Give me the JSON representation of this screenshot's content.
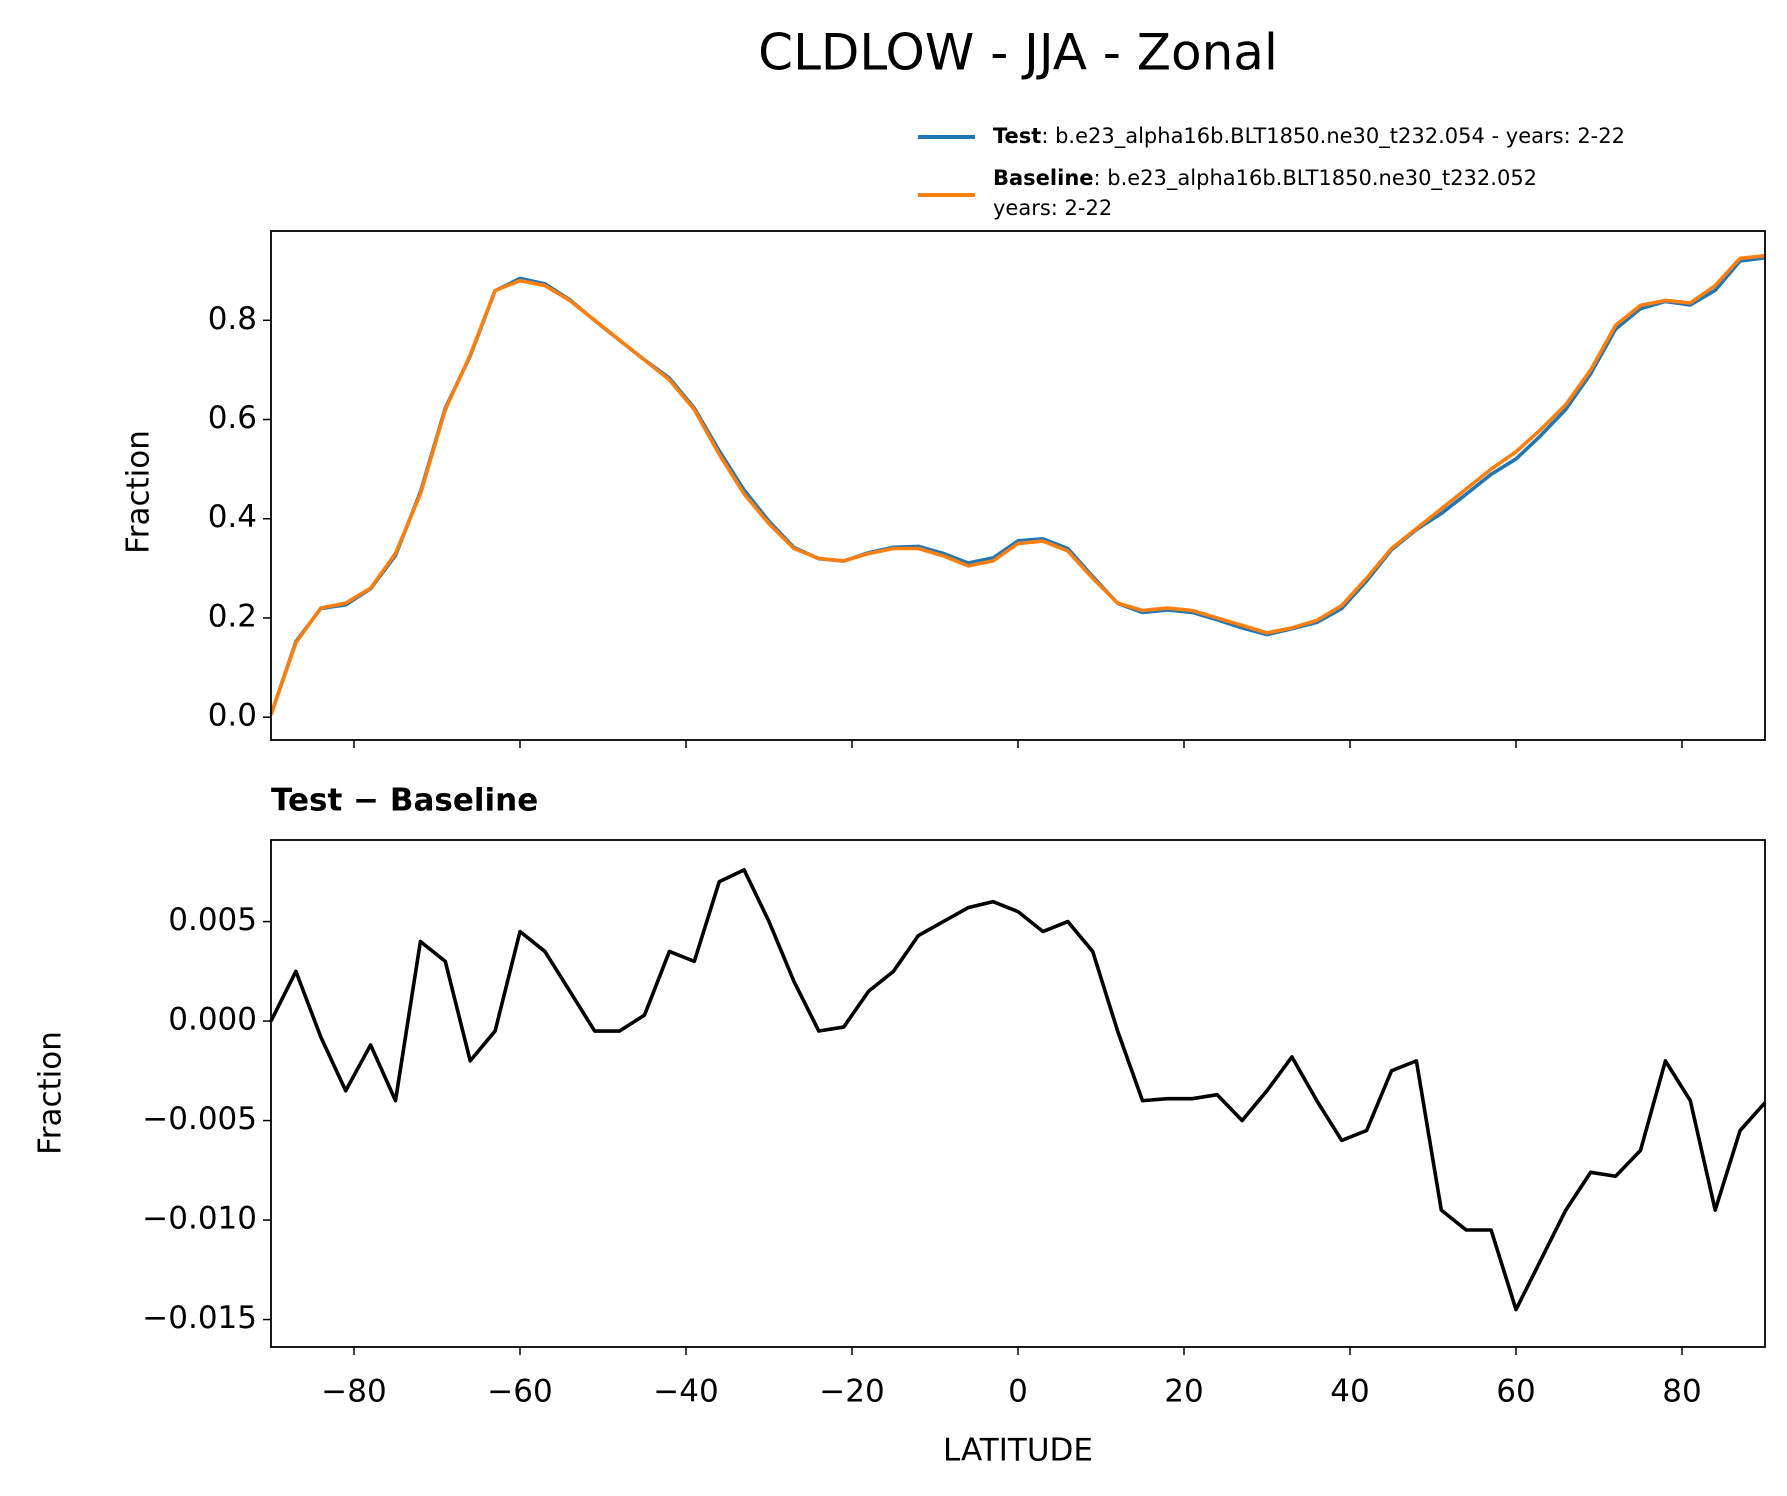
{
  "chart_data": [
    {
      "type": "line",
      "title": "CLDLOW - JJA - Zonal",
      "ylabel": "Fraction",
      "x": [
        -90,
        -87,
        -84,
        -81,
        -78,
        -75,
        -72,
        -69,
        -66,
        -63,
        -60,
        -57,
        -54,
        -51,
        -48,
        -45,
        -42,
        -39,
        -36,
        -33,
        -30,
        -27,
        -24,
        -21,
        -18,
        -15,
        -12,
        -9,
        -6,
        -3,
        0,
        3,
        6,
        9,
        12,
        15,
        18,
        21,
        24,
        27,
        30,
        33,
        36,
        39,
        42,
        45,
        48,
        51,
        54,
        57,
        60,
        63,
        66,
        69,
        72,
        75,
        78,
        81,
        84,
        87,
        90
      ],
      "series": [
        {
          "name": "Test",
          "case": ": b.e23_alpha16b.BLT1850.ne30_t232.054 - years: 2-22",
          "color": "#1f77b4",
          "values": [
            0.005,
            0.1525,
            0.2192,
            0.2265,
            0.2588,
            0.326,
            0.454,
            0.623,
            0.728,
            0.8595,
            0.8845,
            0.8735,
            0.8415,
            0.7995,
            0.7595,
            0.7203,
            0.6835,
            0.623,
            0.537,
            0.4576,
            0.395,
            0.342,
            0.3195,
            0.3147,
            0.3315,
            0.3425,
            0.3443,
            0.33,
            0.3107,
            0.321,
            0.3555,
            0.3595,
            0.34,
            0.2835,
            0.2295,
            0.211,
            0.2161,
            0.2111,
            0.1963,
            0.18,
            0.1665,
            0.1782,
            0.191,
            0.219,
            0.2745,
            0.3375,
            0.378,
            0.4105,
            0.4495,
            0.4895,
            0.5205,
            0.568,
            0.6205,
            0.6924,
            0.7822,
            0.8235,
            0.838,
            0.831,
            0.8605,
            0.9195,
            0.9259
          ]
        },
        {
          "name": "Baseline",
          "case": ": b.e23_alpha16b.BLT1850.ne30_t232.052",
          "years": "years: 2-22",
          "color": "#ff7f0e",
          "values": [
            0.005,
            0.15,
            0.22,
            0.23,
            0.26,
            0.33,
            0.45,
            0.62,
            0.73,
            0.86,
            0.88,
            0.87,
            0.84,
            0.8,
            0.76,
            0.72,
            0.68,
            0.62,
            0.53,
            0.45,
            0.39,
            0.34,
            0.32,
            0.315,
            0.33,
            0.34,
            0.34,
            0.325,
            0.305,
            0.315,
            0.35,
            0.355,
            0.335,
            0.28,
            0.23,
            0.215,
            0.22,
            0.215,
            0.2,
            0.185,
            0.17,
            0.18,
            0.195,
            0.225,
            0.28,
            0.34,
            0.38,
            0.42,
            0.46,
            0.5,
            0.535,
            0.58,
            0.63,
            0.7,
            0.79,
            0.83,
            0.84,
            0.835,
            0.87,
            0.925,
            0.93
          ]
        }
      ],
      "xlim": [
        -90,
        90
      ],
      "xticks": [
        -80,
        -60,
        -40,
        -20,
        0,
        20,
        40,
        60,
        80
      ],
      "ylim": [
        -0.046,
        0.98
      ],
      "yticks": [
        {
          "value": 0,
          "label": "0.0"
        },
        0.2,
        0.4,
        0.6,
        0.8
      ]
    },
    {
      "type": "line",
      "title": "Test − Baseline",
      "ylabel": "Fraction",
      "xlabel": "LATITUDE",
      "x": [
        -90,
        -87,
        -84,
        -81,
        -78,
        -75,
        -72,
        -69,
        -66,
        -63,
        -60,
        -57,
        -54,
        -51,
        -48,
        -45,
        -42,
        -39,
        -36,
        -33,
        -30,
        -27,
        -24,
        -21,
        -18,
        -15,
        -12,
        -9,
        -6,
        -3,
        0,
        3,
        6,
        9,
        12,
        15,
        18,
        21,
        24,
        27,
        30,
        33,
        36,
        39,
        42,
        45,
        48,
        51,
        54,
        57,
        60,
        63,
        66,
        69,
        72,
        75,
        78,
        81,
        84,
        87,
        90
      ],
      "series": [
        {
          "color": "#000000",
          "values": [
            0,
            0.0025,
            -0.0008,
            -0.0035,
            -0.0012,
            -0.004,
            0.004,
            0.003,
            -0.002,
            -0.0005,
            0.0045,
            0.0035,
            0.0015,
            -0.0005,
            -0.0005,
            0.0003,
            0.0035,
            0.003,
            0.007,
            0.0076,
            0.005,
            0.002,
            -0.0005,
            -0.0003,
            0.0015,
            0.0025,
            0.0043,
            0.005,
            0.0057,
            0.006,
            0.0055,
            0.0045,
            0.005,
            0.0035,
            -0.0005,
            -0.004,
            -0.0039,
            -0.0039,
            -0.0037,
            -0.005,
            -0.0035,
            -0.0018,
            -0.004,
            -0.006,
            -0.0055,
            -0.0025,
            -0.002,
            -0.0095,
            -0.0105,
            -0.0105,
            -0.0145,
            -0.012,
            -0.0095,
            -0.0076,
            -0.0078,
            -0.0065,
            -0.002,
            -0.004,
            -0.0095,
            -0.0055,
            -0.0041
          ]
        }
      ],
      "xlim": [
        -90,
        90
      ],
      "xticks": [
        {
          "value": -80,
          "label": "−80"
        },
        {
          "value": -60,
          "label": "−60"
        },
        {
          "value": -40,
          "label": "−40"
        },
        {
          "value": -20,
          "label": "−20"
        },
        0,
        20,
        40,
        60,
        80
      ],
      "ylim": [
        -0.01638,
        0.0091
      ],
      "yticks": [
        {
          "value": -0.015,
          "label": "−0.015"
        },
        {
          "value": -0.01,
          "label": "−0.010"
        },
        {
          "value": -0.005,
          "label": "−0.005"
        },
        {
          "value": 0,
          "label": "0.000"
        },
        0.005
      ]
    }
  ]
}
